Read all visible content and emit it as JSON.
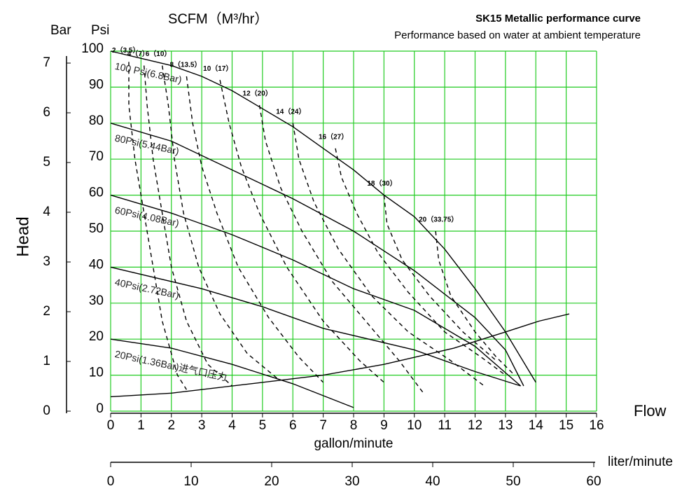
{
  "chart_data": {
    "type": "line",
    "title": "SK15 Metallic performance curve",
    "subtitle": "Performance based on water at ambient temperature",
    "top_label": "SCFM（M³/hr）",
    "y_label": "Head",
    "y_unit": "Psi",
    "y2_unit": "Bar",
    "x_label": "Flow",
    "x_unit": "gallon/minute",
    "x2_unit": "liter/minute",
    "xlim": [
      0,
      16
    ],
    "xticks": [
      0,
      1,
      2,
      3,
      4,
      5,
      6,
      7,
      8,
      9,
      10,
      11,
      12,
      13,
      14,
      15,
      16
    ],
    "ylim": [
      0,
      100
    ],
    "yticks": [
      0,
      10,
      20,
      30,
      40,
      50,
      60,
      70,
      80,
      90,
      100
    ],
    "y2lim": [
      0,
      7.24
    ],
    "y2ticks": [
      0,
      1,
      2,
      3,
      4,
      5,
      6,
      7
    ],
    "x2lim": [
      0,
      60
    ],
    "x2ticks": [
      0,
      10,
      20,
      30,
      40,
      50,
      60
    ],
    "grid": true,
    "grid_color": "#22cc22",
    "series": [
      {
        "name": "100 Psi(6.8Bar)",
        "style": "solid",
        "color": "#000000",
        "x": [
          0,
          1,
          2,
          3,
          4,
          5,
          6,
          7,
          8,
          9,
          10,
          11,
          12,
          13,
          14
        ],
        "values": [
          100,
          98,
          96,
          93,
          89,
          84,
          79,
          73,
          67,
          60,
          54,
          45,
          34,
          22,
          8
        ]
      },
      {
        "name": "80Psi(5.44Bar)",
        "style": "solid",
        "color": "#000000",
        "x": [
          0,
          2,
          4,
          6,
          8,
          10,
          12,
          13,
          13.6
        ],
        "values": [
          80,
          75,
          67,
          59,
          50,
          39,
          26,
          17,
          7
        ]
      },
      {
        "name": "60Psi(4.08Bar)",
        "style": "solid",
        "color": "#000000",
        "x": [
          0,
          2,
          4,
          6,
          8,
          10,
          12,
          13.5
        ],
        "values": [
          60,
          55,
          49,
          42,
          34,
          28,
          18,
          7
        ]
      },
      {
        "name": "40Psi(2.72Bar)",
        "style": "solid",
        "color": "#000000",
        "x": [
          0,
          3,
          5,
          7,
          10,
          12,
          13.5
        ],
        "values": [
          40,
          34,
          29,
          23,
          17,
          11,
          7
        ]
      },
      {
        "name": "20Psi(1.36Bar)进气口压力",
        "style": "solid",
        "color": "#000000",
        "x": [
          0,
          2,
          4,
          6,
          8
        ],
        "values": [
          20,
          17.5,
          13,
          7.6,
          1
        ]
      },
      {
        "style": "solid",
        "color": "#000000",
        "x": [
          0,
          2,
          5,
          7,
          9,
          11.3,
          13,
          14.1,
          15.1
        ],
        "values": [
          4,
          5,
          8,
          10,
          13,
          17.5,
          22,
          25,
          27
        ]
      },
      {
        "name": "2（3.5）",
        "style": "dashed",
        "color": "#000000",
        "x": [
          0.6,
          0.6,
          0.8,
          1.1,
          1.4,
          1.7,
          2.2,
          2.5
        ],
        "values": [
          97,
          85,
          70,
          55,
          40,
          25,
          10,
          6
        ]
      },
      {
        "name": "4（7）",
        "style": "dashed",
        "color": "#000000",
        "x": [
          1.1,
          1.2,
          1.4,
          1.7,
          2.0,
          2.5,
          3.2,
          4.0
        ],
        "values": [
          96,
          85,
          70,
          55,
          40,
          25,
          13,
          7
        ]
      },
      {
        "name": "6（10）",
        "style": "dashed",
        "color": "#000000",
        "x": [
          1.7,
          1.9,
          2.1,
          2.4,
          2.9,
          3.6,
          4.5,
          5.5
        ],
        "values": [
          96,
          85,
          70,
          55,
          40,
          27,
          16,
          9
        ]
      },
      {
        "name": "8（13.5）",
        "style": "dashed",
        "color": "#000000",
        "x": [
          2.5,
          2.7,
          3.0,
          3.5,
          4.2,
          5.2,
          6.2,
          7.0
        ],
        "values": [
          93,
          80,
          68,
          55,
          40,
          26,
          15,
          8
        ]
      },
      {
        "name": "10（17）",
        "style": "dashed",
        "color": "#000000",
        "x": [
          3.6,
          3.9,
          4.3,
          4.9,
          5.8,
          7.0,
          8.2,
          9.0
        ],
        "values": [
          92,
          80,
          68,
          55,
          40,
          25,
          14,
          8
        ]
      },
      {
        "name": "12（20）",
        "style": "dashed",
        "color": "#000000",
        "x": [
          4.9,
          5.1,
          5.6,
          6.3,
          7.3,
          8.5,
          9.5,
          10.3
        ],
        "values": [
          85,
          75,
          62,
          50,
          36,
          24,
          14,
          5
        ]
      },
      {
        "name": "14（24）",
        "style": "dashed",
        "color": "#000000",
        "x": [
          6.0,
          6.2,
          6.7,
          7.5,
          8.6,
          9.8,
          11.2,
          12.3
        ],
        "values": [
          80,
          70,
          58,
          45,
          32,
          22,
          14,
          7
        ]
      },
      {
        "name": "16（27）",
        "style": "dashed",
        "color": "#000000",
        "x": [
          7.4,
          7.6,
          8.1,
          8.8,
          9.8,
          11,
          12.2,
          13
        ],
        "values": [
          73,
          65,
          55,
          44,
          33,
          22,
          15,
          10
        ]
      },
      {
        "name": "18（30）",
        "style": "dashed",
        "color": "#000000",
        "x": [
          9.0,
          9.1,
          9.6,
          10.5,
          11.6,
          12.7
        ],
        "values": [
          60,
          52,
          42,
          32,
          22,
          14
        ]
      },
      {
        "name": "20（33.75）",
        "style": "dashed",
        "color": "#000000",
        "x": [
          10.7,
          10.8,
          11.2,
          12,
          12.7,
          13.3
        ],
        "values": [
          50,
          42,
          32,
          22,
          15,
          10
        ]
      }
    ]
  }
}
